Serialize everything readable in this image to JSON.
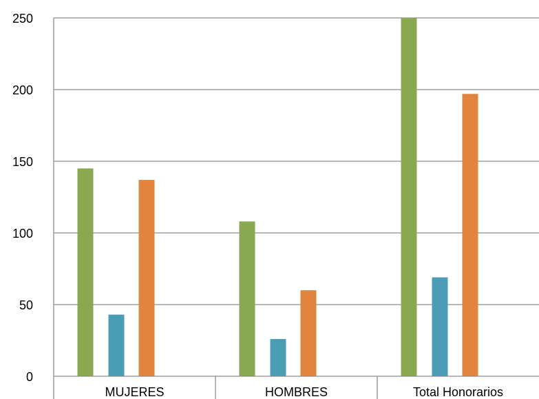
{
  "chart_data": {
    "type": "bar",
    "title": "",
    "xlabel": "",
    "ylabel": "",
    "categories": [
      "MUJERES",
      "HOMBRES",
      "Total Honorarios"
    ],
    "series": [
      {
        "values": [
          145,
          108,
          250
        ],
        "color": "#8aa850"
      },
      {
        "values": [
          43,
          26,
          69
        ],
        "color": "#4a9db5"
      },
      {
        "values": [
          137,
          60,
          197
        ],
        "color": "#e0843f"
      }
    ],
    "ylim": [
      0,
      250
    ],
    "yticks": [
      0,
      50,
      100,
      150,
      200,
      250
    ],
    "grid": true,
    "legend": "none"
  }
}
